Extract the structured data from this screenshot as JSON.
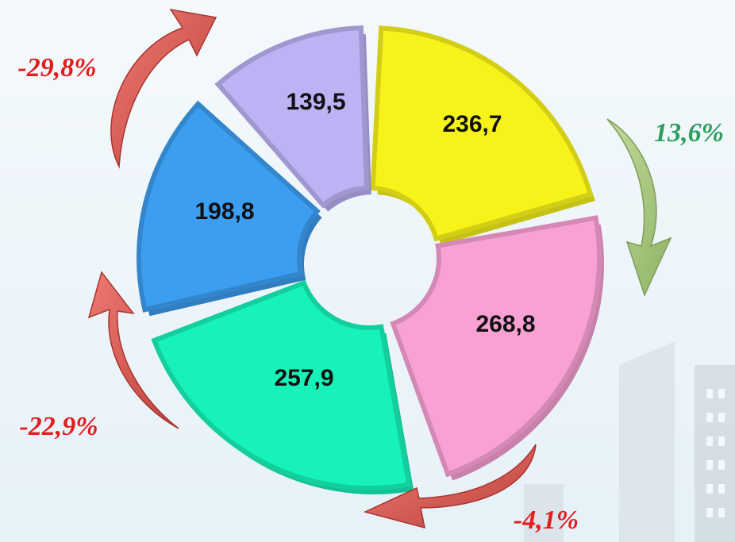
{
  "segments": [
    {
      "label": "236,7",
      "color": "#f7f21a"
    },
    {
      "label": "268,8",
      "color": "#f9a1d4"
    },
    {
      "label": "257,9",
      "color": "#16f2b9"
    },
    {
      "label": "198,8",
      "color": "#3c9ef0"
    },
    {
      "label": "139,5",
      "color": "#bcb2f4"
    }
  ],
  "changes": [
    {
      "label": "13,6%",
      "color": "#2f9e5e"
    },
    {
      "label": "-4,1%",
      "color": "#e21d1d"
    },
    {
      "label": "-22,9%",
      "color": "#e21d1d"
    },
    {
      "label": "-29,8%",
      "color": "#e21d1d"
    }
  ]
}
